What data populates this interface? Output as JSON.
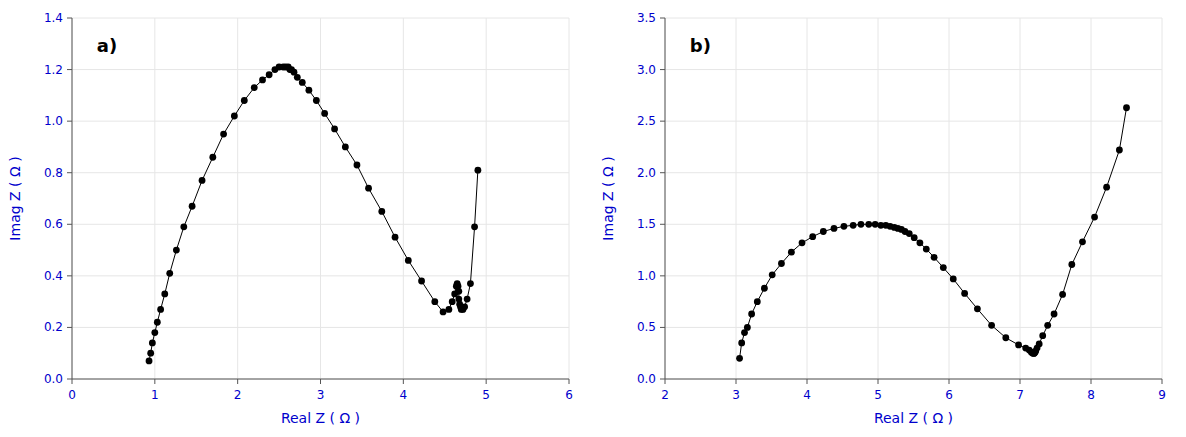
{
  "chart_data": [
    {
      "type": "line",
      "annotations": [
        "a)"
      ],
      "xlabel": "Real Z ( Ω )",
      "ylabel": "Imag Z ( Ω )",
      "xlim": [
        0,
        6
      ],
      "ylim": [
        0,
        1.4
      ],
      "xticks": [
        0,
        1,
        2,
        3,
        4,
        5,
        6
      ],
      "yticks": [
        {
          "value": 0.0,
          "label": "0.0"
        },
        {
          "value": 0.2,
          "label": "0.2"
        },
        {
          "value": 0.4,
          "label": "0.4"
        },
        {
          "value": 0.6,
          "label": "0.6"
        },
        {
          "value": 0.8,
          "label": "0.8"
        },
        {
          "value": 1.0,
          "label": "1.0"
        },
        {
          "value": 1.2,
          "label": "1.2"
        },
        {
          "value": 1.4,
          "label": "1.4"
        }
      ],
      "x": [
        0.93,
        0.95,
        0.97,
        1.0,
        1.03,
        1.07,
        1.12,
        1.18,
        1.26,
        1.35,
        1.45,
        1.57,
        1.7,
        1.83,
        1.96,
        2.08,
        2.2,
        2.3,
        2.38,
        2.45,
        2.5,
        2.55,
        2.58,
        2.61,
        2.63,
        2.65,
        2.68,
        2.72,
        2.78,
        2.86,
        2.95,
        3.05,
        3.17,
        3.3,
        3.44,
        3.58,
        3.74,
        3.9,
        4.06,
        4.22,
        4.38,
        4.48,
        4.55,
        4.59,
        4.62,
        4.64,
        4.65,
        4.66,
        4.67,
        4.67,
        4.68,
        4.69,
        4.7,
        4.72,
        4.74,
        4.77,
        4.81,
        4.86,
        4.9
      ],
      "series": [
        {
          "color": "#000000",
          "marker": "circle",
          "values": [
            0.07,
            0.1,
            0.14,
            0.18,
            0.22,
            0.27,
            0.33,
            0.41,
            0.5,
            0.59,
            0.67,
            0.77,
            0.86,
            0.95,
            1.02,
            1.08,
            1.13,
            1.16,
            1.18,
            1.2,
            1.21,
            1.21,
            1.21,
            1.21,
            1.2,
            1.2,
            1.19,
            1.17,
            1.15,
            1.12,
            1.08,
            1.03,
            0.97,
            0.9,
            0.83,
            0.74,
            0.65,
            0.55,
            0.46,
            0.38,
            0.3,
            0.26,
            0.27,
            0.3,
            0.33,
            0.36,
            0.37,
            0.36,
            0.34,
            0.31,
            0.29,
            0.28,
            0.27,
            0.27,
            0.28,
            0.31,
            0.37,
            0.59,
            0.81
          ]
        }
      ]
    },
    {
      "type": "line",
      "annotations": [
        "b)"
      ],
      "xlabel": "Real Z ( Ω )",
      "ylabel": "Imag Z ( Ω )",
      "xlim": [
        2,
        9
      ],
      "ylim": [
        0,
        3.5
      ],
      "xticks": [
        2,
        3,
        4,
        5,
        6,
        7,
        8,
        9
      ],
      "yticks": [
        {
          "value": 0.0,
          "label": "0.0"
        },
        {
          "value": 0.5,
          "label": "0.5"
        },
        {
          "value": 1.0,
          "label": "1.0"
        },
        {
          "value": 1.5,
          "label": "1.5"
        },
        {
          "value": 2.0,
          "label": "2.0"
        },
        {
          "value": 2.5,
          "label": "2.5"
        },
        {
          "value": 3.0,
          "label": "3.0"
        },
        {
          "value": 3.5,
          "label": "3.5"
        }
      ],
      "x": [
        3.05,
        3.08,
        3.12,
        3.16,
        3.22,
        3.3,
        3.4,
        3.51,
        3.64,
        3.78,
        3.93,
        4.08,
        4.23,
        4.38,
        4.52,
        4.65,
        4.76,
        4.87,
        4.96,
        5.04,
        5.11,
        5.17,
        5.23,
        5.28,
        5.33,
        5.38,
        5.44,
        5.51,
        5.59,
        5.68,
        5.79,
        5.92,
        6.06,
        6.22,
        6.4,
        6.6,
        6.8,
        6.98,
        7.08,
        7.13,
        7.16,
        7.18,
        7.19,
        7.2,
        7.2,
        7.21,
        7.22,
        7.24,
        7.27,
        7.32,
        7.39,
        7.48,
        7.6,
        7.73,
        7.88,
        8.05,
        8.22,
        8.4,
        8.5
      ],
      "series": [
        {
          "color": "#000000",
          "marker": "circle",
          "values": [
            0.2,
            0.35,
            0.45,
            0.5,
            0.63,
            0.75,
            0.88,
            1.01,
            1.12,
            1.23,
            1.32,
            1.38,
            1.43,
            1.46,
            1.48,
            1.49,
            1.5,
            1.5,
            1.5,
            1.49,
            1.49,
            1.48,
            1.47,
            1.46,
            1.45,
            1.43,
            1.41,
            1.37,
            1.32,
            1.26,
            1.18,
            1.08,
            0.97,
            0.83,
            0.68,
            0.52,
            0.4,
            0.33,
            0.3,
            0.28,
            0.26,
            0.25,
            0.25,
            0.25,
            0.25,
            0.26,
            0.27,
            0.3,
            0.34,
            0.42,
            0.52,
            0.63,
            0.82,
            1.11,
            1.33,
            1.57,
            1.86,
            2.22,
            2.63
          ]
        }
      ]
    }
  ]
}
